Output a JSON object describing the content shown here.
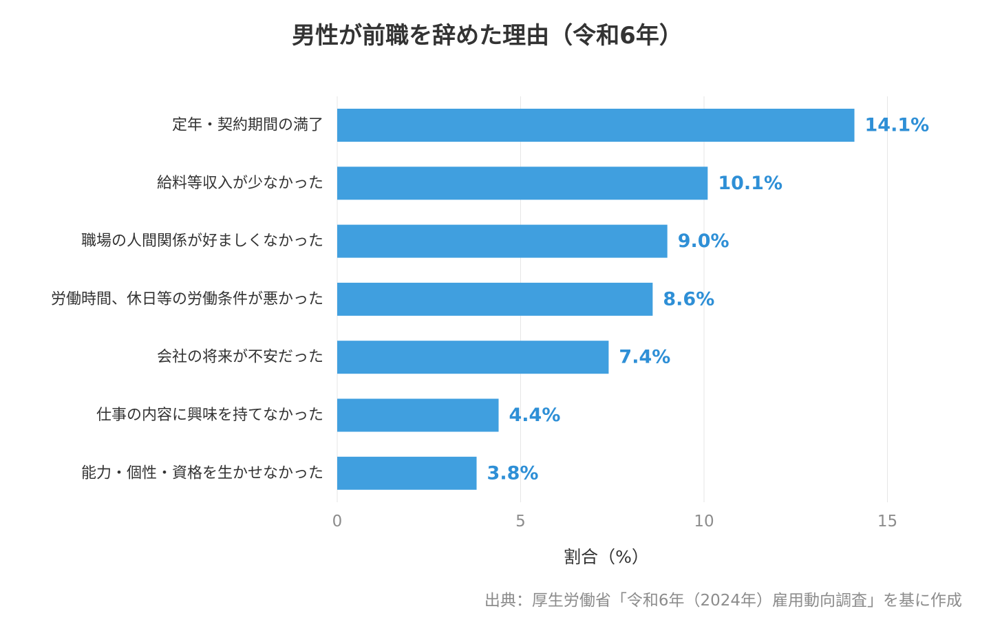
{
  "chart_data": {
    "type": "bar",
    "orientation": "horizontal",
    "title": "男性が前職を辞めた理由（令和6年）",
    "categories": [
      "定年・契約期間の満了",
      "給料等収入が少なかった",
      "職場の人間関係が好ましくなかった",
      "労働時間、休日等の労働条件が悪かった",
      "会社の将来が不安だった",
      "仕事の内容に興味を持てなかった",
      "能力・個性・資格を生かせなかった"
    ],
    "values": [
      14.1,
      10.1,
      9.0,
      8.6,
      7.4,
      4.4,
      3.8
    ],
    "value_labels": [
      "14.1%",
      "10.1%",
      "9.0%",
      "8.6%",
      "7.4%",
      "4.4%",
      "3.8%"
    ],
    "xlabel": "割合（%）",
    "ylabel": "",
    "xlim": [
      0,
      16.5
    ],
    "xticks": [
      0,
      5,
      10,
      15
    ],
    "xtick_labels": [
      "0",
      "5",
      "10",
      "15"
    ],
    "grid": true,
    "bar_color": "#409fdf",
    "label_color": "#2e8fd6",
    "source": "出典：厚生労働省「令和6年（2024年）雇用動向調査」を基に作成"
  }
}
